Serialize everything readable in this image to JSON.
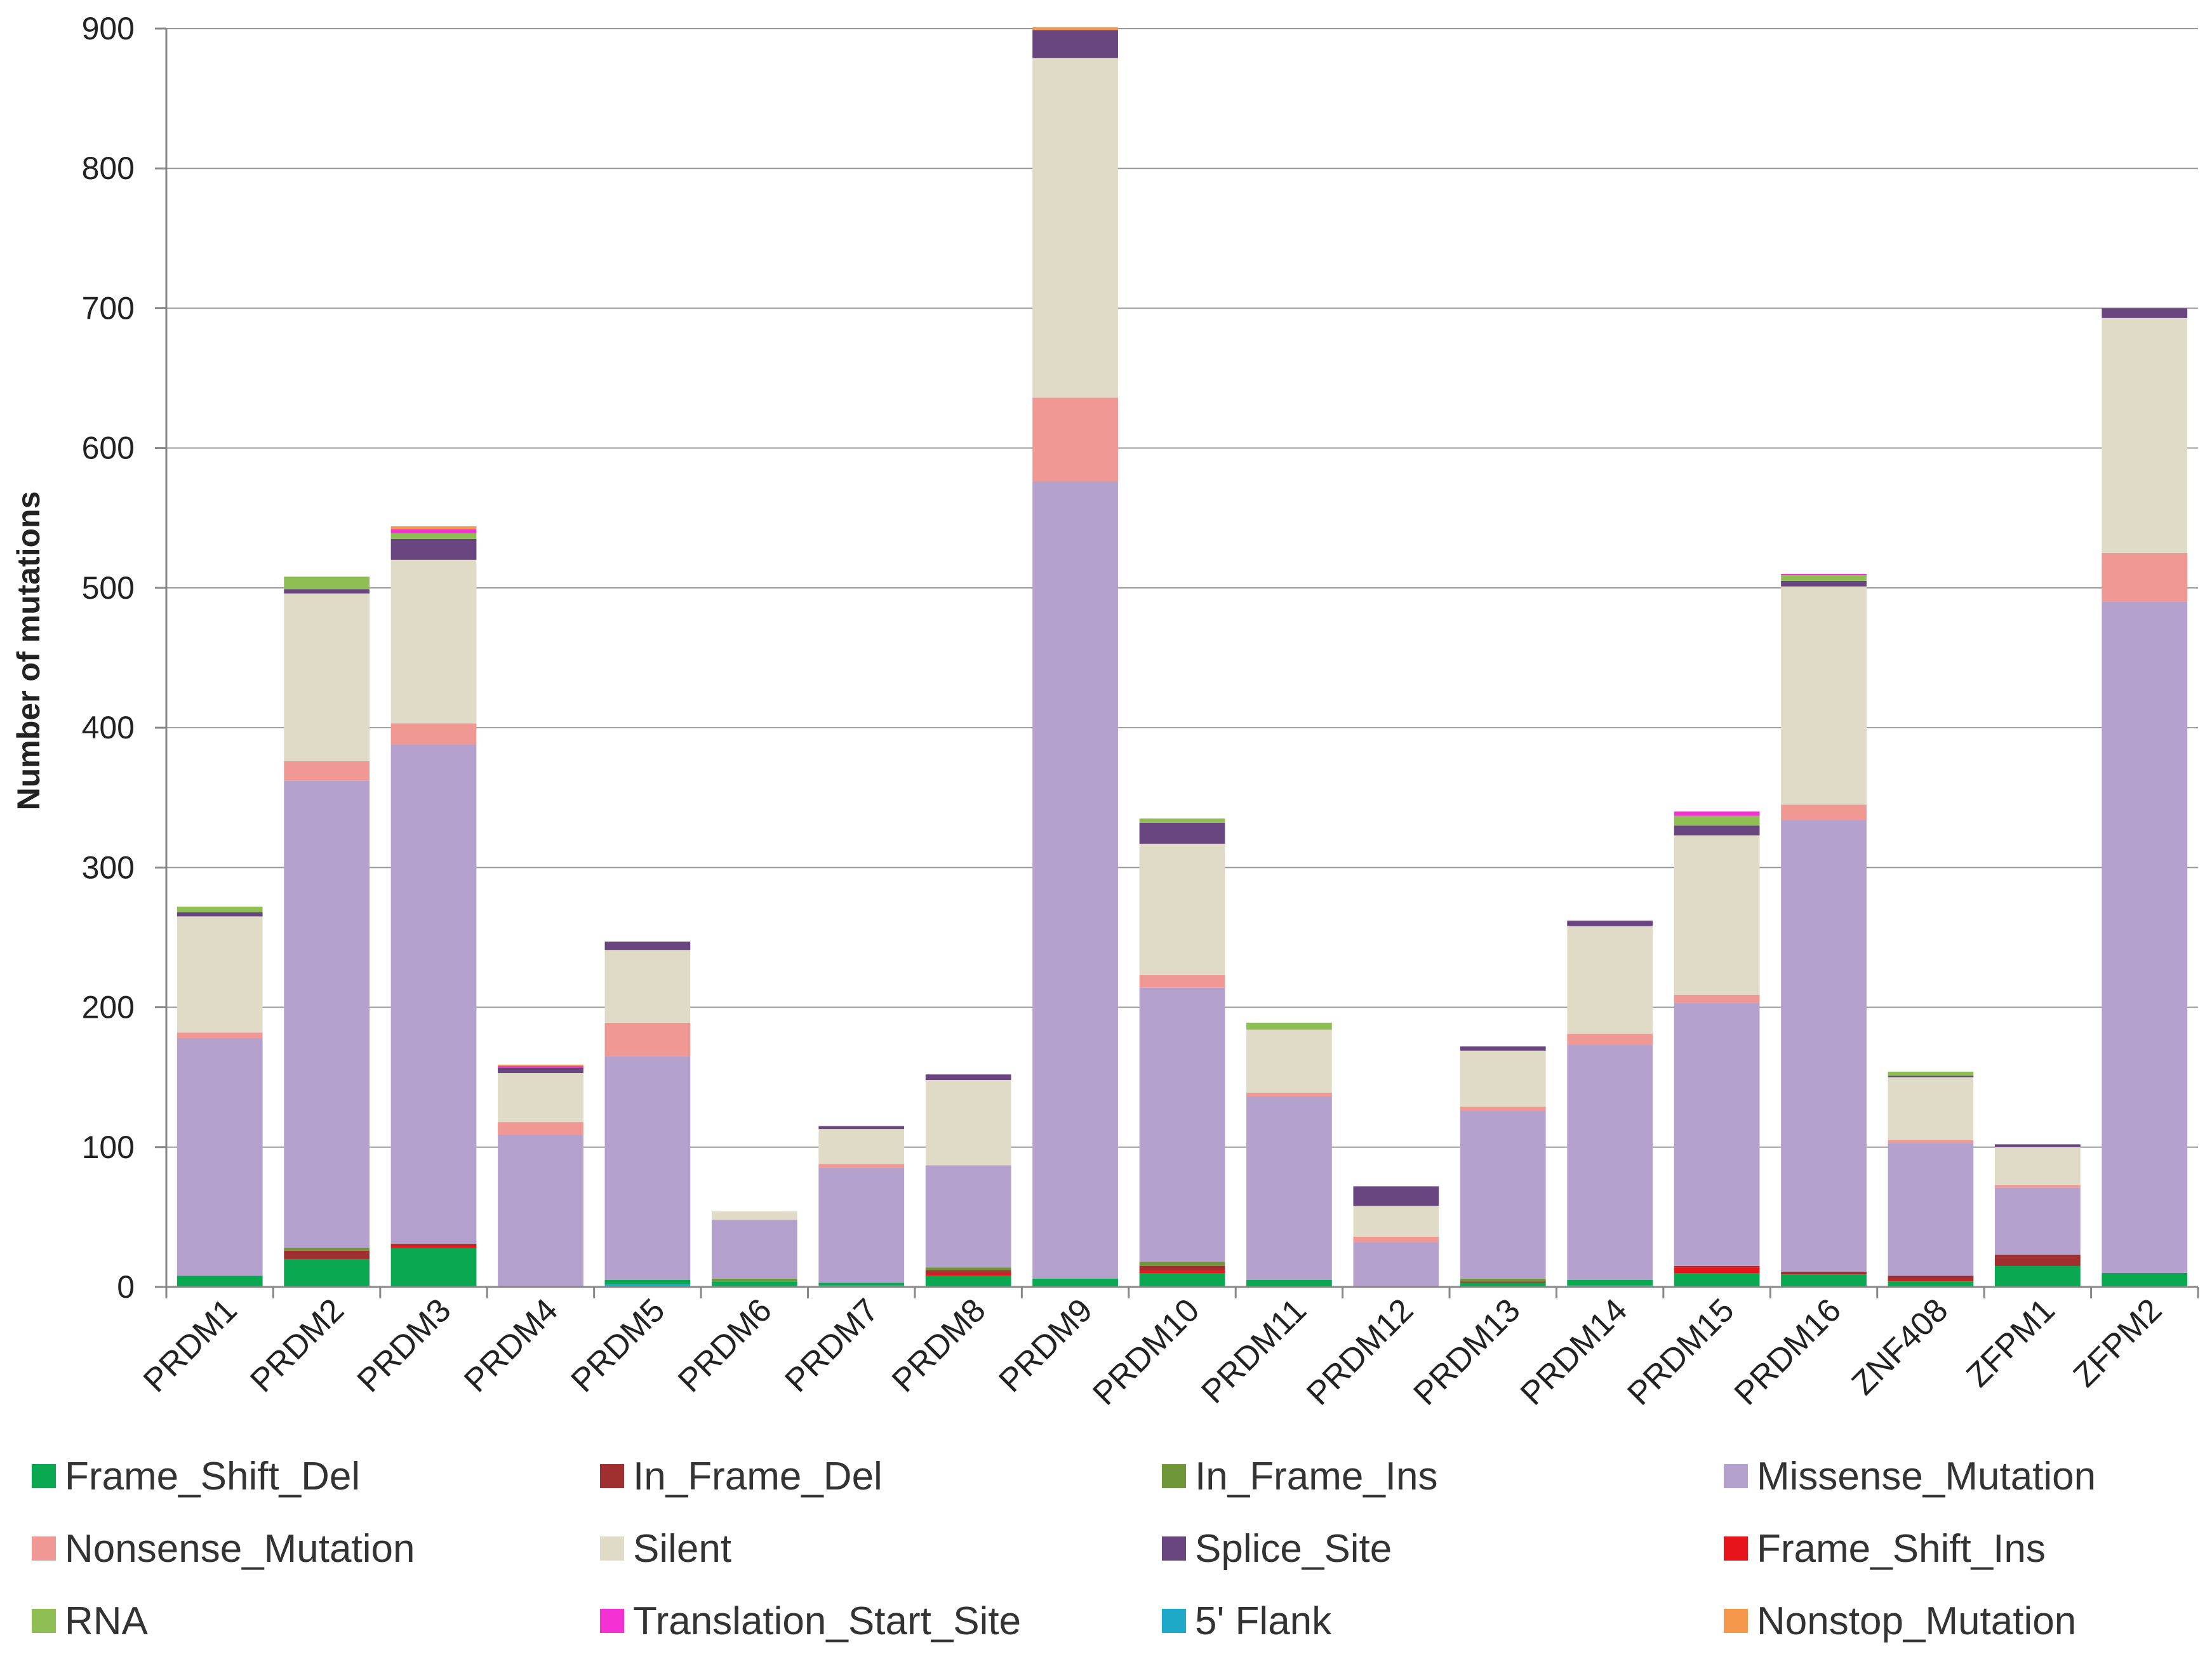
{
  "chart_data": {
    "type": "bar",
    "stacked": true,
    "title": "",
    "xlabel": "",
    "ylabel": "Number of mutations",
    "ylim": [
      0,
      900
    ],
    "yticks": [
      0,
      100,
      200,
      300,
      400,
      500,
      600,
      700,
      800,
      900
    ],
    "grid": true,
    "legend_position": "bottom",
    "categories": [
      "PRDM1",
      "PRDM2",
      "PRDM3",
      "PRDM4",
      "PRDM5",
      "PRDM6",
      "PRDM7",
      "PRDM8",
      "PRDM9",
      "PRDM10",
      "PRDM11",
      "PRDM12",
      "PRDM13",
      "PRDM14",
      "PRDM15",
      "PRDM16",
      "ZNF408",
      "ZFPM1",
      "ZFPM2"
    ],
    "series": [
      {
        "name": "5' Flank",
        "color": "#1fa9c9",
        "values": [
          0,
          0,
          0,
          0,
          2,
          0,
          1,
          0,
          0,
          0,
          0,
          0,
          0,
          1,
          0,
          0,
          0,
          0,
          0
        ]
      },
      {
        "name": "Frame_Shift_Del",
        "color": "#0aa851",
        "values": [
          8,
          20,
          28,
          0,
          3,
          4,
          2,
          8,
          6,
          10,
          5,
          0,
          3,
          4,
          10,
          9,
          4,
          15,
          10
        ]
      },
      {
        "name": "Frame_Shift_Ins",
        "color": "#e8141b",
        "values": [
          0,
          0,
          2,
          0,
          0,
          0,
          0,
          2,
          0,
          2,
          0,
          0,
          0,
          0,
          4,
          0,
          1,
          0,
          0
        ]
      },
      {
        "name": "In_Frame_Del",
        "color": "#a0302f",
        "values": [
          0,
          6,
          1,
          0,
          0,
          0,
          0,
          2,
          0,
          3,
          0,
          0,
          1,
          0,
          1,
          2,
          3,
          8,
          0
        ]
      },
      {
        "name": "In_Frame_Ins",
        "color": "#6f9638",
        "values": [
          0,
          2,
          0,
          0,
          0,
          2,
          0,
          2,
          0,
          3,
          0,
          0,
          2,
          0,
          0,
          0,
          0,
          0,
          0
        ]
      },
      {
        "name": "Missense_Mutation",
        "color": "#b5a1ce",
        "values": [
          170,
          334,
          357,
          109,
          160,
          42,
          82,
          73,
          570,
          196,
          131,
          32,
          120,
          168,
          188,
          323,
          95,
          48,
          480
        ]
      },
      {
        "name": "Nonsense_Mutation",
        "color": "#ef9894",
        "values": [
          4,
          14,
          15,
          9,
          24,
          0,
          3,
          0,
          60,
          9,
          3,
          4,
          3,
          8,
          6,
          11,
          2,
          2,
          35
        ]
      },
      {
        "name": "Silent",
        "color": "#e0dbc7",
        "values": [
          83,
          120,
          117,
          35,
          52,
          6,
          25,
          61,
          243,
          94,
          45,
          22,
          40,
          77,
          114,
          156,
          45,
          27,
          168
        ]
      },
      {
        "name": "Splice_Site",
        "color": "#69467f",
        "values": [
          3,
          3,
          15,
          4,
          6,
          0,
          2,
          4,
          20,
          15,
          0,
          14,
          3,
          4,
          7,
          4,
          1,
          2,
          7
        ]
      },
      {
        "name": "RNA",
        "color": "#8fbe55",
        "values": [
          4,
          9,
          4,
          0,
          0,
          0,
          0,
          0,
          0,
          3,
          5,
          0,
          0,
          0,
          7,
          4,
          3,
          0,
          0
        ]
      },
      {
        "name": "Translation_Start_Site",
        "color": "#f432d3",
        "values": [
          0,
          0,
          3,
          1,
          0,
          0,
          0,
          0,
          0,
          0,
          0,
          0,
          0,
          0,
          3,
          1,
          0,
          0,
          0
        ]
      },
      {
        "name": "Nonstop_Mutation",
        "color": "#f4974a",
        "values": [
          0,
          0,
          2,
          1,
          0,
          0,
          0,
          0,
          2,
          0,
          0,
          0,
          0,
          0,
          0,
          0,
          0,
          0,
          0
        ]
      }
    ]
  },
  "legend": {
    "items": [
      {
        "label": "Frame_Shift_Del",
        "color": "#0aa851"
      },
      {
        "label": "In_Frame_Del",
        "color": "#a0302f"
      },
      {
        "label": "In_Frame_Ins",
        "color": "#6f9638"
      },
      {
        "label": "Missense_Mutation",
        "color": "#b5a1ce"
      },
      {
        "label": "Nonsense_Mutation",
        "color": "#ef9894"
      },
      {
        "label": "Silent",
        "color": "#e0dbc7"
      },
      {
        "label": "Splice_Site",
        "color": "#69467f"
      },
      {
        "label": "Frame_Shift_Ins",
        "color": "#e8141b"
      },
      {
        "label": "RNA",
        "color": "#8fbe55"
      },
      {
        "label": "Translation_Start_Site",
        "color": "#f432d3"
      },
      {
        "label": "5' Flank",
        "color": "#1fa9c9"
      },
      {
        "label": "Nonstop_Mutation",
        "color": "#f4974a"
      }
    ]
  }
}
